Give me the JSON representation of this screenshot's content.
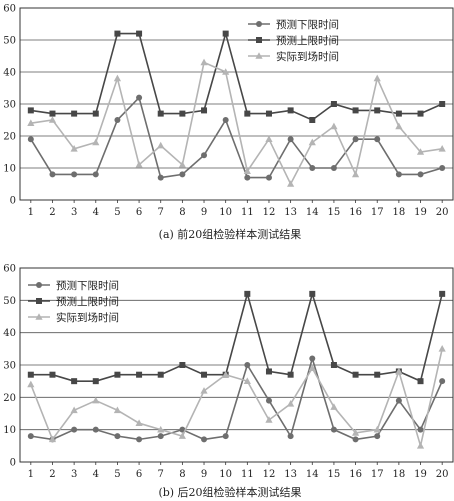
{
  "chart_data": [
    {
      "type": "line",
      "caption": "(a) 前20组检验样本测试结果",
      "x": [
        1,
        2,
        3,
        4,
        5,
        6,
        7,
        8,
        9,
        10,
        11,
        12,
        13,
        14,
        15,
        16,
        17,
        18,
        19,
        20
      ],
      "ylim": [
        0,
        60
      ],
      "yticks": [
        0,
        10,
        20,
        30,
        40,
        50,
        60
      ],
      "grid": "horizontal",
      "legend": "top-right",
      "series": [
        {
          "name": "预测下限时间",
          "marker": "circle",
          "color": "#6e6e6e",
          "values": [
            19,
            8,
            8,
            8,
            25,
            32,
            7,
            8,
            14,
            25,
            7,
            7,
            19,
            10,
            10,
            19,
            19,
            8,
            8,
            10
          ]
        },
        {
          "name": "预测上限时间",
          "marker": "square",
          "color": "#474747",
          "values": [
            28,
            27,
            27,
            27,
            52,
            52,
            27,
            27,
            28,
            52,
            27,
            27,
            28,
            25,
            30,
            28,
            28,
            27,
            27,
            30
          ]
        },
        {
          "name": "实际到场时间",
          "marker": "triangle",
          "color": "#b4b4b4",
          "values": [
            24,
            25,
            16,
            18,
            38,
            11,
            17,
            11,
            43,
            40,
            9,
            19,
            5,
            18,
            23,
            8,
            38,
            23,
            15,
            16
          ]
        }
      ]
    },
    {
      "type": "line",
      "caption": "(b) 后20组检验样本测试结果",
      "x": [
        1,
        2,
        3,
        4,
        5,
        6,
        7,
        8,
        9,
        10,
        11,
        12,
        13,
        14,
        15,
        16,
        17,
        18,
        19,
        20
      ],
      "ylim": [
        0,
        60
      ],
      "yticks": [
        0,
        10,
        20,
        30,
        40,
        50,
        60
      ],
      "grid": "horizontal",
      "legend": "top-left",
      "series": [
        {
          "name": "预测下限时间",
          "marker": "circle",
          "color": "#6e6e6e",
          "values": [
            8,
            7,
            10,
            10,
            8,
            7,
            8,
            10,
            7,
            8,
            30,
            19,
            8,
            32,
            10,
            7,
            8,
            19,
            10,
            25
          ]
        },
        {
          "name": "预测上限时间",
          "marker": "square",
          "color": "#474747",
          "values": [
            27,
            27,
            25,
            25,
            27,
            27,
            27,
            30,
            27,
            27,
            52,
            28,
            27,
            52,
            30,
            27,
            27,
            28,
            25,
            52
          ]
        },
        {
          "name": "实际到场时间",
          "marker": "triangle",
          "color": "#b4b4b4",
          "values": [
            24,
            7,
            16,
            19,
            16,
            12,
            10,
            8,
            22,
            27,
            25,
            13,
            18,
            29,
            17,
            9,
            10,
            28,
            5,
            35
          ]
        }
      ]
    }
  ]
}
